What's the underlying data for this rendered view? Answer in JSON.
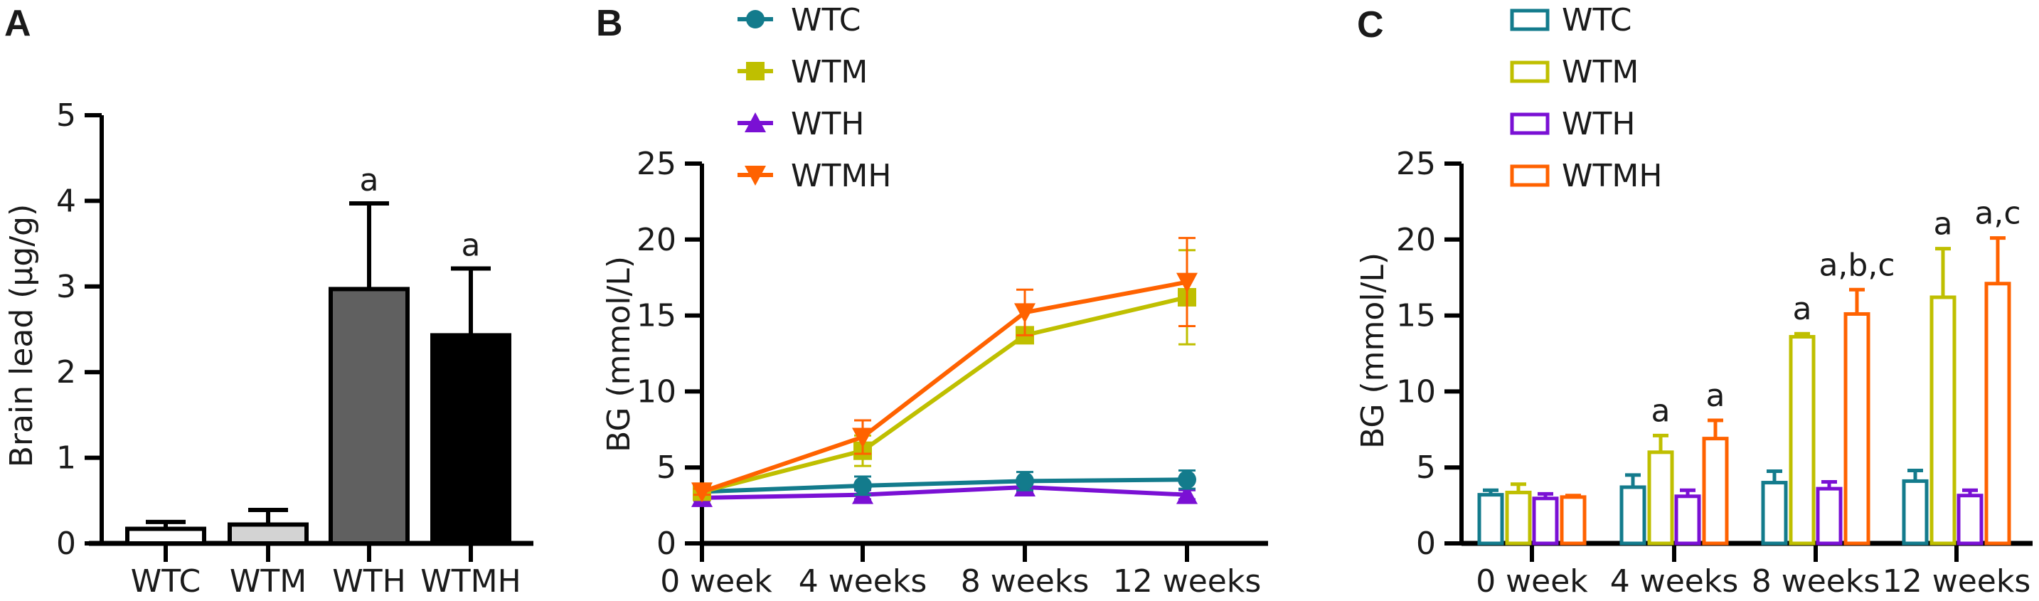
{
  "colors": {
    "WTC": "#137b8c",
    "WTM": "#bfbf00",
    "WTH": "#7a10d4",
    "WTMH": "#ff6200"
  },
  "chart_data": [
    {
      "panel": "A",
      "type": "bar",
      "ylabel": "Brain lead (μg/g)",
      "xlabel": "",
      "ylim": [
        0,
        5
      ],
      "yticks": [
        "0",
        "1",
        "2",
        "3",
        "4",
        "5"
      ],
      "categories": [
        "WTC",
        "WTM",
        "WTH",
        "WTMH"
      ],
      "values": [
        0.17,
        0.22,
        2.97,
        2.43
      ],
      "error": [
        0.08,
        0.17,
        1.0,
        0.78
      ],
      "fills": [
        "#ffffff",
        "#d3d3d3",
        "#606060",
        "#000000"
      ],
      "annotations": [
        {
          "category": "WTH",
          "text": "a"
        },
        {
          "category": "WTMH",
          "text": "a"
        }
      ],
      "grid": false
    },
    {
      "panel": "B",
      "type": "line",
      "ylabel": "BG (mmol/L)",
      "xlabel": "",
      "ylim": [
        0,
        25
      ],
      "yticks": [
        "0",
        "5",
        "10",
        "15",
        "20",
        "25"
      ],
      "x": [
        "0 week",
        "4 weeks",
        "8 weeks",
        "12 weeks"
      ],
      "legend": "top",
      "grid": false,
      "series": [
        {
          "name": "WTC",
          "marker": "circle",
          "values": [
            3.4,
            3.8,
            4.1,
            4.2
          ],
          "error": [
            0.3,
            0.6,
            0.6,
            0.6
          ]
        },
        {
          "name": "WTM",
          "marker": "square",
          "values": [
            3.4,
            6.1,
            13.7,
            16.2
          ],
          "error": [
            0.4,
            1.0,
            0.2,
            3.1
          ]
        },
        {
          "name": "WTH",
          "marker": "triangle-up",
          "values": [
            3.0,
            3.2,
            3.7,
            3.2
          ],
          "error": [
            0.2,
            0.3,
            0.3,
            0.3
          ]
        },
        {
          "name": "WTMH",
          "marker": "triangle-down",
          "values": [
            3.4,
            7.0,
            15.2,
            17.2
          ],
          "error": [
            0.2,
            1.1,
            1.5,
            2.9
          ]
        }
      ]
    },
    {
      "panel": "C",
      "type": "bar",
      "ylabel": "BG (mmol/L)",
      "xlabel": "",
      "ylim": [
        0,
        25
      ],
      "yticks": [
        "0",
        "5",
        "10",
        "15",
        "20",
        "25"
      ],
      "categories": [
        "0 week",
        "4 weeks",
        "8 weeks",
        "12 weeks"
      ],
      "legend": "top",
      "grid": false,
      "series": [
        {
          "name": "WTC",
          "values": [
            3.2,
            3.7,
            4.0,
            4.1
          ],
          "error": [
            0.3,
            0.8,
            0.75,
            0.7
          ]
        },
        {
          "name": "WTM",
          "values": [
            3.35,
            6.0,
            13.6,
            16.2
          ],
          "error": [
            0.55,
            1.1,
            0.2,
            3.2
          ]
        },
        {
          "name": "WTH",
          "values": [
            2.96,
            3.1,
            3.6,
            3.15
          ],
          "error": [
            0.3,
            0.4,
            0.45,
            0.35
          ]
        },
        {
          "name": "WTMH",
          "values": [
            3.05,
            6.9,
            15.1,
            17.1
          ],
          "error": [
            0.1,
            1.2,
            1.6,
            3.0
          ]
        }
      ],
      "annotations": [
        {
          "category": "4 weeks",
          "series": "WTM",
          "text": "a"
        },
        {
          "category": "4 weeks",
          "series": "WTMH",
          "text": "a"
        },
        {
          "category": "8 weeks",
          "series": "WTM",
          "text": "a"
        },
        {
          "category": "8 weeks",
          "series": "WTMH",
          "text": "a,b,c"
        },
        {
          "category": "12 weeks",
          "series": "WTM",
          "text": "a"
        },
        {
          "category": "12 weeks",
          "series": "WTMH",
          "text": "a,c"
        }
      ]
    }
  ]
}
